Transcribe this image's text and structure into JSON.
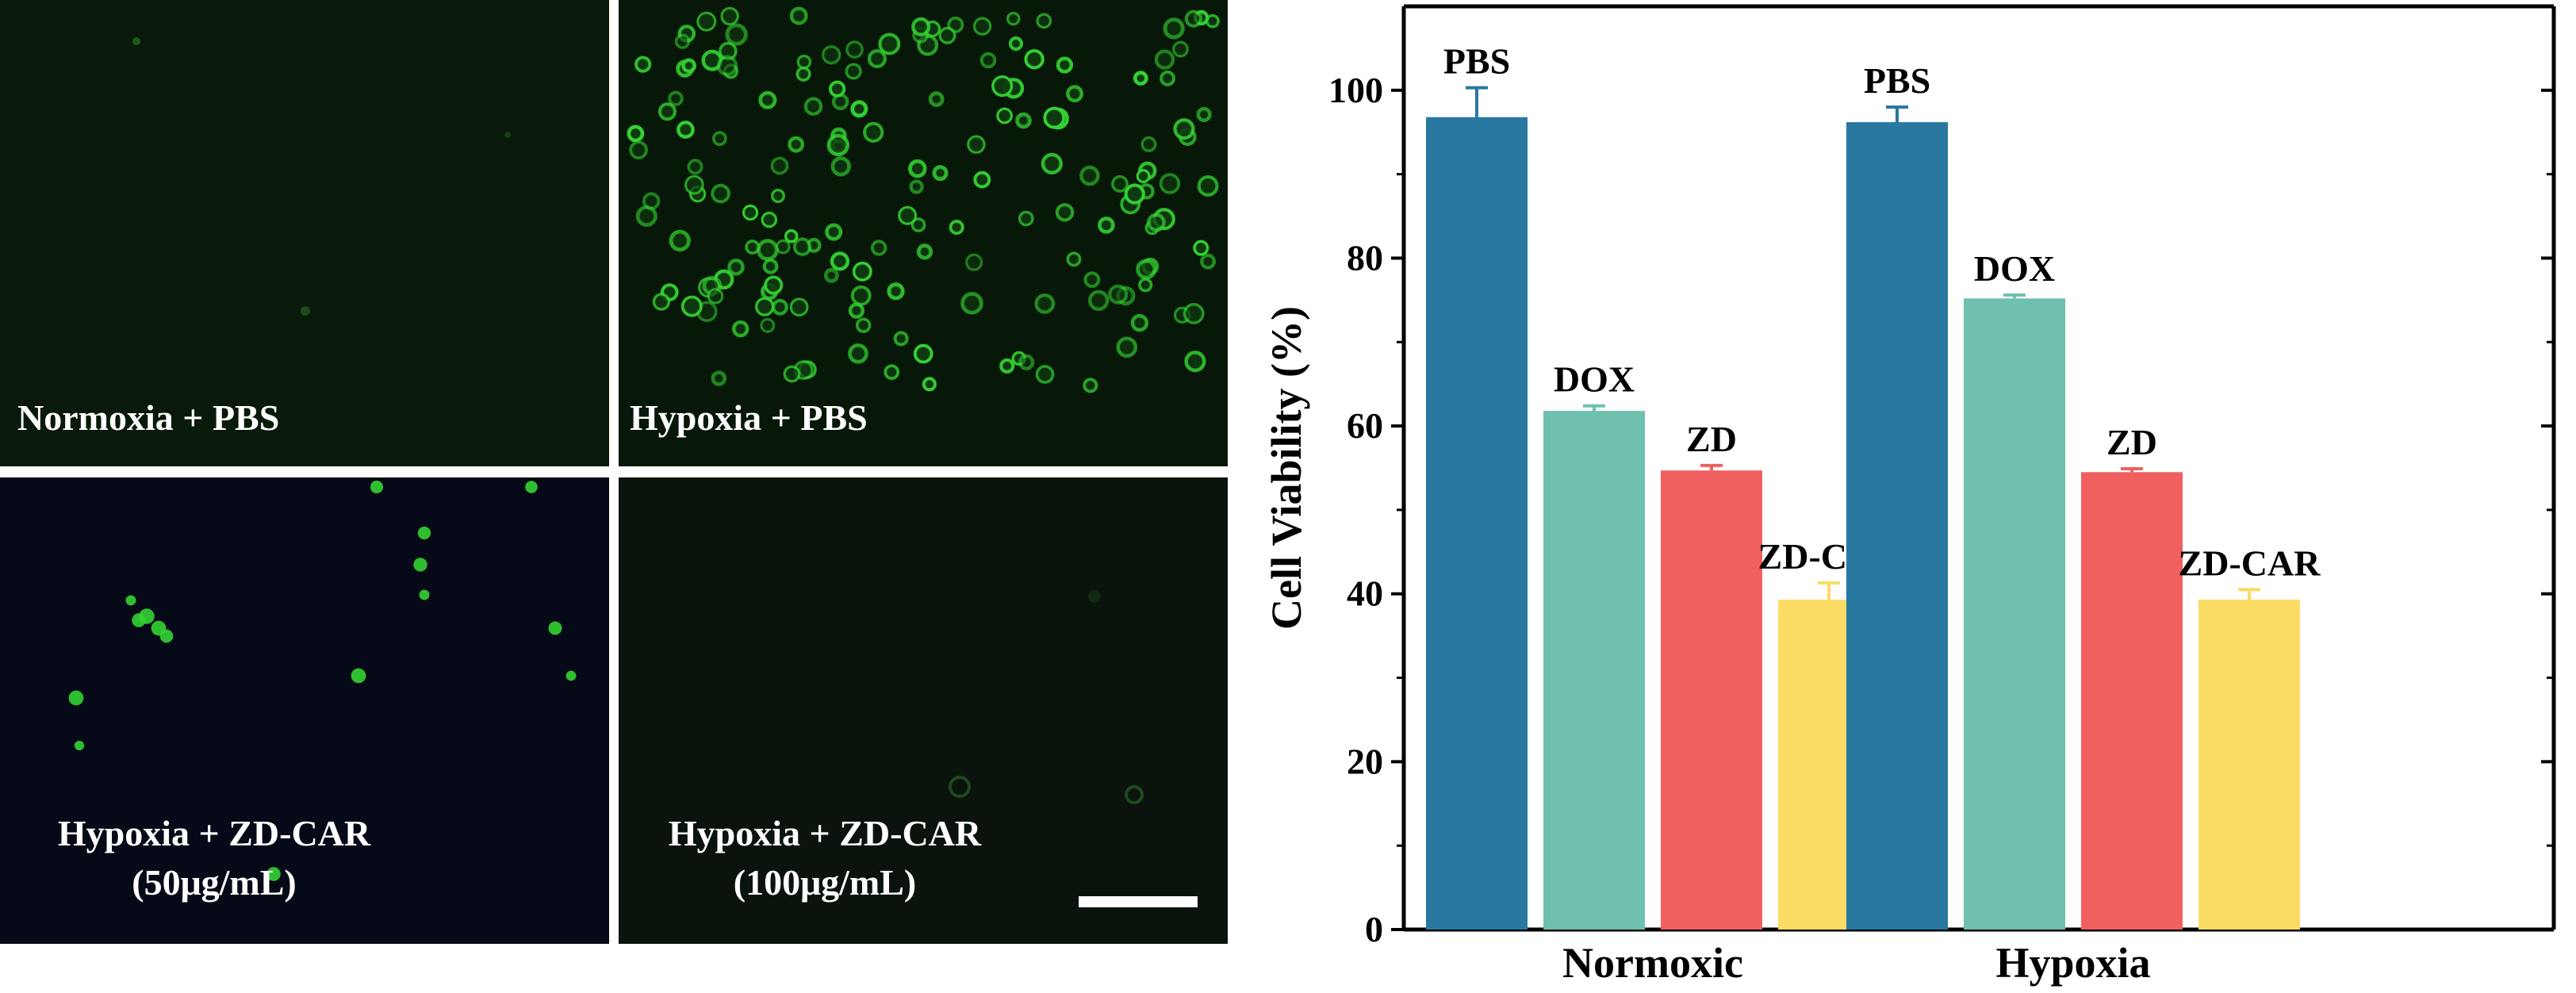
{
  "panels": [
    {
      "label": "Normoxia + PBS",
      "label_line2": ""
    },
    {
      "label": "Hypoxia + PBS",
      "label_line2": ""
    },
    {
      "label": "Hypoxia + ZD-CAR",
      "label_line2": "(50μg/mL)"
    },
    {
      "label": "Hypoxia + ZD-CAR",
      "label_line2": "(100μg/mL)"
    }
  ],
  "colors": {
    "PBS": "#2878a0",
    "DOX": "#70c0b0",
    "ZD": "#f06060",
    "ZD-CAR": "#fadc64",
    "panel_bg": "#081808",
    "panel_bg_blue": "#060a18",
    "cell": "#34d232"
  },
  "chart_data": {
    "type": "bar",
    "categories": [
      "Normoxic",
      "Hypoxia"
    ],
    "series": [
      {
        "name": "PBS",
        "values": [
          96.8,
          96.2
        ],
        "errors": [
          3.5,
          1.8
        ]
      },
      {
        "name": "DOX",
        "values": [
          61.8,
          75.2
        ],
        "errors": [
          0.6,
          0.4
        ]
      },
      {
        "name": "ZD",
        "values": [
          54.7,
          54.5
        ],
        "errors": [
          0.6,
          0.4
        ]
      },
      {
        "name": "ZD-CAR",
        "values": [
          39.3,
          39.3
        ],
        "errors": [
          2.0,
          1.2
        ]
      }
    ],
    "ylabel": "Cell Viability (%)",
    "ylim": [
      0,
      110
    ],
    "yticks": [
      0,
      20,
      40,
      60,
      80,
      100
    ],
    "legend": "none"
  }
}
